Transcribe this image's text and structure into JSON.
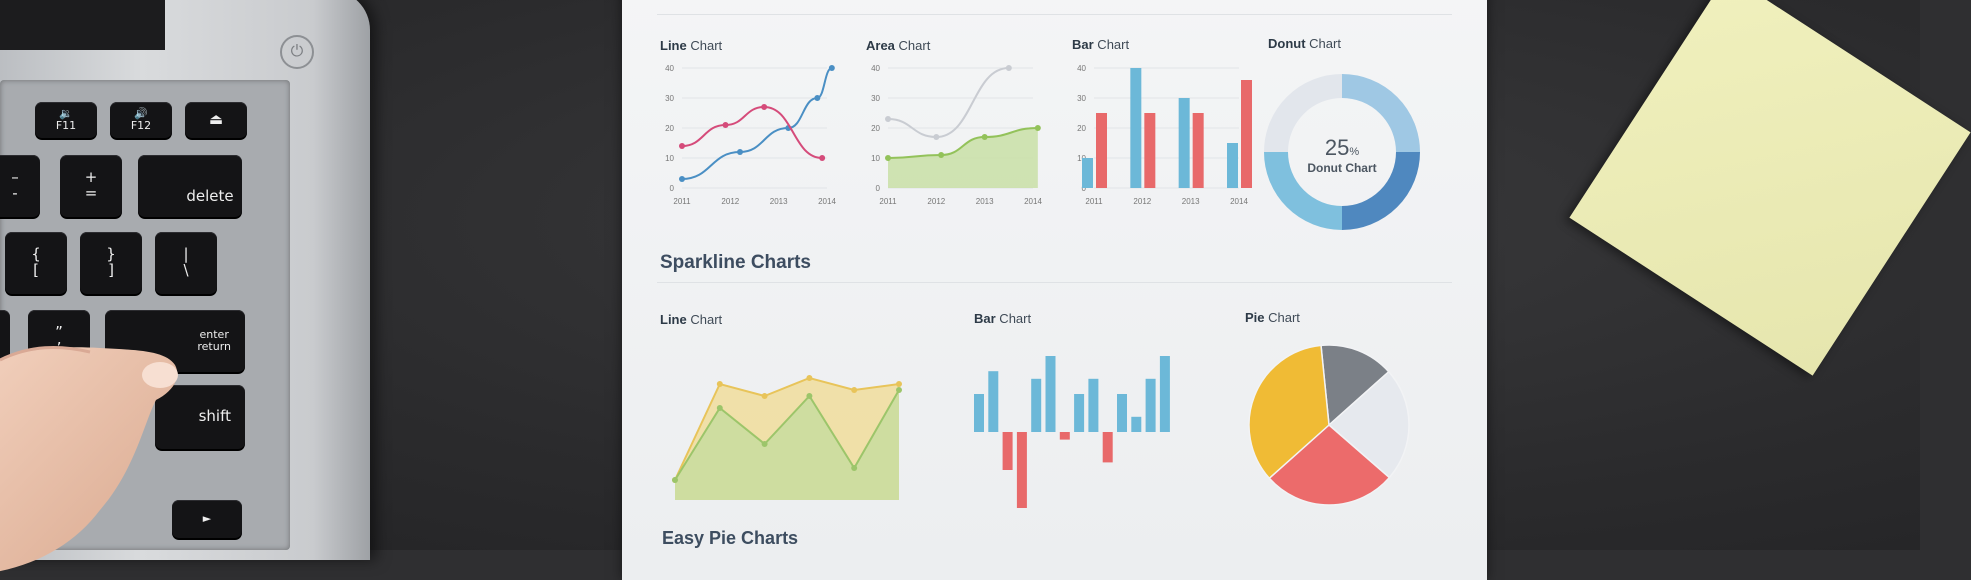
{
  "laptop": {
    "keys": [
      {
        "id": "key-f10",
        "label": "🔉\nF11"
      },
      {
        "id": "key-f12",
        "label": "🔊\nF12"
      },
      {
        "id": "key-eject",
        "label": "⏏"
      },
      {
        "id": "key-minus",
        "label": "–\n-"
      },
      {
        "id": "key-equals",
        "label": "+\n="
      },
      {
        "id": "key-delete",
        "label": "delete"
      },
      {
        "id": "key-bracket-left",
        "label": "{\n["
      },
      {
        "id": "key-bracket-right",
        "label": "}\n]"
      },
      {
        "id": "key-backslash",
        "label": "|\n\\"
      },
      {
        "id": "key-quote",
        "label": "”\n’"
      },
      {
        "id": "key-enter",
        "label": "enter\nreturn"
      },
      {
        "id": "key-shift",
        "label": "shift"
      },
      {
        "id": "key-arrow",
        "label": "►"
      },
      {
        "id": "key-left-1",
        "label": ""
      },
      {
        "id": "key-left-2",
        "label": ""
      },
      {
        "id": "key-left-3",
        "label": ""
      },
      {
        "id": "key-left-4",
        "label": ""
      }
    ],
    "power_glyph": "⏻"
  },
  "paper": {
    "top_row": [
      {
        "bold": "Line",
        "rest": " Chart"
      },
      {
        "bold": "Area",
        "rest": " Chart"
      },
      {
        "bold": "Bar",
        "rest": " Chart"
      },
      {
        "bold": "Donut",
        "rest": " Chart"
      }
    ],
    "sparkline_heading": "Sparkline Charts",
    "bottom_row": [
      {
        "bold": "Line",
        "rest": " Chart"
      },
      {
        "bold": "Bar",
        "rest": " Chart"
      },
      {
        "bold": "Pie",
        "rest": " Chart"
      }
    ],
    "easy_pie_heading": "Easy Pie Charts",
    "donut": {
      "value": "25",
      "unit": "%",
      "label": "Donut Chart"
    }
  },
  "chart_data": [
    {
      "type": "line",
      "name": "top-line-chart",
      "categories": [
        "2011",
        "2012",
        "2013",
        "2014"
      ],
      "yticks": [
        "0",
        "10",
        "20",
        "30",
        "40"
      ],
      "ylim": [
        0,
        40
      ],
      "series": [
        {
          "color": "#4a8fc4",
          "x": [
            2011,
            2012.2,
            2013.2,
            2013.8,
            2014.1
          ],
          "values": [
            3,
            12,
            20,
            30,
            40
          ]
        },
        {
          "color": "#d54b7a",
          "x": [
            2011,
            2011.9,
            2012.7,
            2013.9
          ],
          "values": [
            14,
            21,
            27,
            10
          ]
        }
      ],
      "grid": true
    },
    {
      "type": "area",
      "name": "top-area-chart",
      "categories": [
        "2011",
        "2012",
        "2013",
        "2014"
      ],
      "yticks": [
        "0",
        "10",
        "20",
        "30",
        "40"
      ],
      "ylim": [
        0,
        40
      ],
      "series": [
        {
          "color": "#c9ccd2",
          "x": [
            2011,
            2012,
            2013.5
          ],
          "values": [
            23,
            17,
            40
          ]
        },
        {
          "color": "#93c25a",
          "fill": "#c9dfa6",
          "x": [
            2011,
            2012.1,
            2013,
            2014.1
          ],
          "values": [
            10,
            11,
            17,
            20
          ]
        }
      ],
      "grid": true
    },
    {
      "type": "bar",
      "name": "top-bar-chart",
      "categories": [
        "2011",
        "2012",
        "2013",
        "2014"
      ],
      "yticks": [
        "0",
        "10",
        "20",
        "30",
        "40"
      ],
      "ylim": [
        0,
        40
      ],
      "series": [
        {
          "color": "#6cb8d8",
          "values": [
            10,
            40,
            30,
            15
          ]
        },
        {
          "color": "#e8696a",
          "values": [
            25,
            25,
            25,
            36
          ]
        }
      ],
      "grid": true
    },
    {
      "type": "pie",
      "name": "donut-chart",
      "donut": true,
      "values": [
        25,
        25,
        25,
        25
      ],
      "colors": [
        "#9fc8e4",
        "#4f88bf",
        "#7fc0de",
        "#e2e6ec"
      ]
    },
    {
      "type": "area",
      "name": "sparkline-line-chart",
      "series": [
        {
          "color": "#e8c45a",
          "fill": "#f0dc96",
          "values": [
            2,
            18,
            16,
            19,
            17,
            18
          ]
        },
        {
          "color": "#9cc56a",
          "fill": "#c5dc9e",
          "values": [
            2,
            14,
            8,
            16,
            4,
            17
          ]
        }
      ]
    },
    {
      "type": "bar",
      "name": "sparkline-bar-chart",
      "values": [
        5,
        8,
        -5,
        -10,
        7,
        10,
        -1,
        5,
        7,
        -4,
        5,
        2,
        7,
        10
      ],
      "colors": [
        "#6cb8d8",
        "#e8696a"
      ]
    },
    {
      "type": "pie",
      "name": "sparkline-pie-chart",
      "values": [
        35,
        15,
        23,
        27
      ],
      "colors": [
        "#f0bb35",
        "#7b8087",
        "#e6e9ee",
        "#ec6b6b"
      ]
    }
  ],
  "sticky_note": {
    "color": "#ececb6"
  }
}
